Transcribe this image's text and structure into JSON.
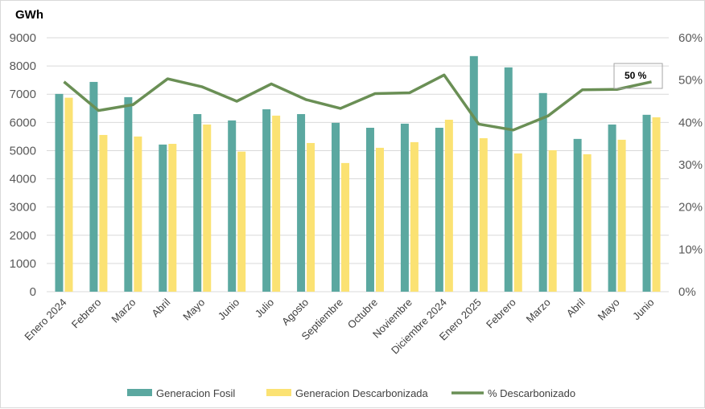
{
  "chart_data": {
    "type": "bar+line",
    "ylabel": "GWh",
    "categories": [
      "Enero 2024",
      "Febrero",
      "Marzo",
      "Abril",
      "Mayo",
      "Junio",
      "Julio",
      "Agosto",
      "Septiembre",
      "Octubre",
      "Noviembre",
      "Diciembre 2024",
      "Enero 2025",
      "Febrero",
      "Marzo",
      "Abril",
      "Mayo",
      "Junio"
    ],
    "ylim": [
      0,
      9000
    ],
    "yticks": [
      "0",
      "1000",
      "2000",
      "3000",
      "4000",
      "5000",
      "6000",
      "7000",
      "8000",
      "9000"
    ],
    "y2lim": [
      0,
      60
    ],
    "y2ticks": [
      "0%",
      "10%",
      "20%",
      "30%",
      "40%",
      "50%",
      "60%"
    ],
    "grid": true,
    "legend_position": "bottom",
    "series": [
      {
        "name": "Generacion Fosil",
        "type": "bar",
        "color": "#5ba8a0",
        "values": [
          7010,
          7435,
          6895,
          5215,
          6295,
          6070,
          6465,
          6295,
          5985,
          5810,
          5955,
          5810,
          8350,
          7950,
          7040,
          5415,
          5925,
          6270
        ]
      },
      {
        "name": "Generacion Descarbonizada",
        "type": "bar",
        "color": "#fbe273",
        "values": [
          6875,
          5555,
          5500,
          5240,
          5925,
          4965,
          6240,
          5270,
          4560,
          5100,
          5300,
          6095,
          5440,
          4900,
          5015,
          4870,
          5385,
          6180
        ]
      },
      {
        "name": "% Descarbonizado",
        "type": "line",
        "axis": "right",
        "color": "#6a8f55",
        "values": [
          49.6,
          42.8,
          44.2,
          50.3,
          48.4,
          45.0,
          49.1,
          45.4,
          43.3,
          46.8,
          47.0,
          51.2,
          39.6,
          38.2,
          41.5,
          47.7,
          47.8,
          49.6
        ]
      }
    ],
    "annotation": "50 %"
  }
}
